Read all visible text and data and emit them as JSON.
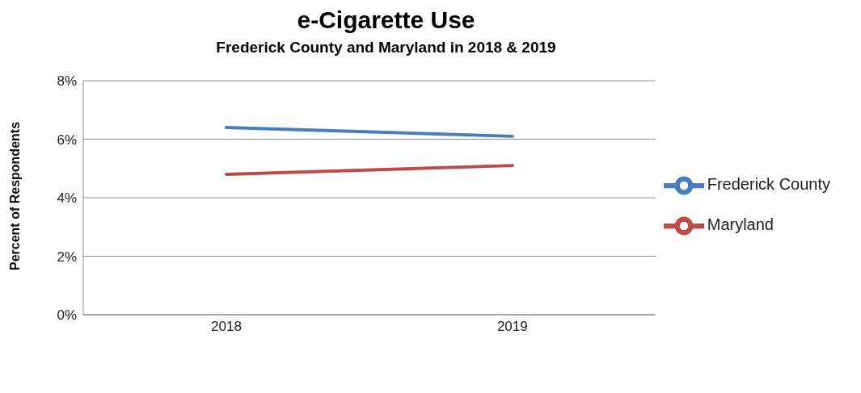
{
  "chart_data": {
    "type": "line",
    "title": "e-Cigarette Use",
    "subtitle": "Frederick County and Maryland in 2018 & 2019",
    "ylabel": "Percent of Respondents",
    "categories": [
      "2018",
      "2019"
    ],
    "series": [
      {
        "name": "Frederick County",
        "color": "#4a7ebb",
        "values": [
          6.4,
          6.1
        ]
      },
      {
        "name": "Maryland",
        "color": "#be4b48",
        "values": [
          4.8,
          5.1
        ]
      }
    ],
    "ylim": [
      0,
      8
    ],
    "yticks": [
      {
        "value": 0,
        "label": "0%"
      },
      {
        "value": 2,
        "label": "2%"
      },
      {
        "value": 4,
        "label": "4%"
      },
      {
        "value": 6,
        "label": "6%"
      },
      {
        "value": 8,
        "label": "8%"
      }
    ],
    "grid": "y",
    "legend": "right",
    "marker": "none",
    "line_style": "solid"
  }
}
